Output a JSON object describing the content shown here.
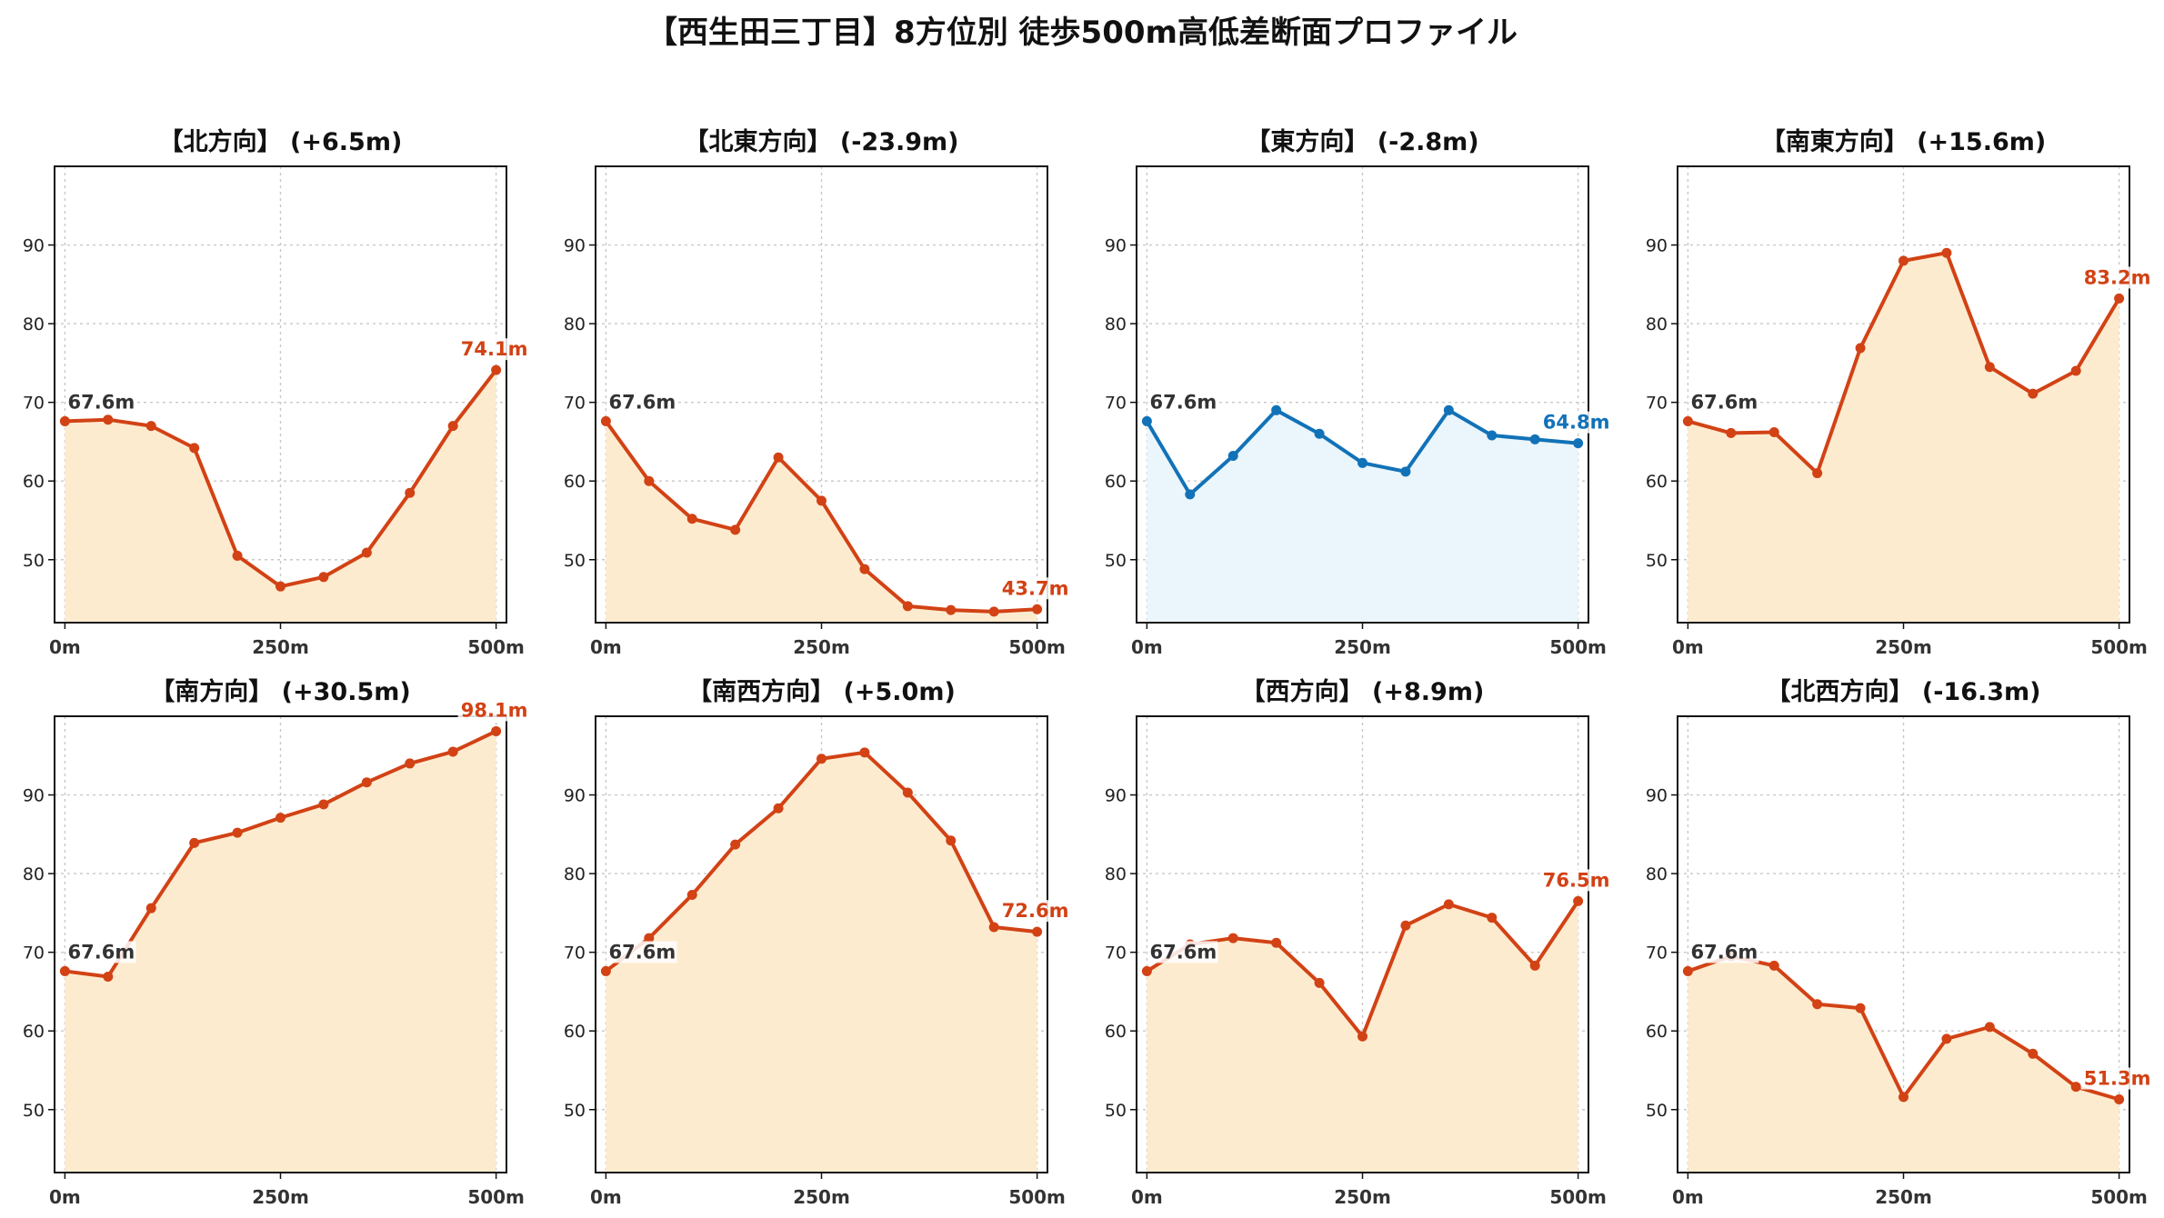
{
  "title": "【西生田三丁目】8方位別 徒歩500m高低差断面プロファイル",
  "colors": {
    "rise_line": "#d24215",
    "rise_fill": "#fdebcf",
    "fall_line": "#1272b8",
    "fall_fill": "#eaf6fb",
    "grid": "#c8c8c8",
    "start_label": "#333333"
  },
  "chart_data": [
    {
      "type": "area",
      "title": "【北方向】 (+6.5m)",
      "x": [
        0,
        50,
        100,
        150,
        200,
        250,
        300,
        350,
        400,
        450,
        500
      ],
      "y": [
        67.6,
        67.8,
        67.0,
        64.2,
        50.5,
        46.6,
        47.8,
        50.9,
        58.5,
        67.0,
        74.1
      ],
      "ylim": [
        42,
        100
      ],
      "yticks": [
        50,
        60,
        70,
        80,
        90
      ],
      "xticks": [
        "0m",
        "250m",
        "500m"
      ],
      "start_label": "67.6m",
      "end_label": "74.1m",
      "style": "rise",
      "grid": true
    },
    {
      "type": "area",
      "title": "【北東方向】 (-23.9m)",
      "x": [
        0,
        50,
        100,
        150,
        200,
        250,
        300,
        350,
        400,
        450,
        500
      ],
      "y": [
        67.6,
        60.0,
        55.2,
        53.8,
        63.0,
        57.5,
        48.8,
        44.1,
        43.6,
        43.4,
        43.7
      ],
      "ylim": [
        42,
        100
      ],
      "yticks": [
        50,
        60,
        70,
        80,
        90
      ],
      "xticks": [
        "0m",
        "250m",
        "500m"
      ],
      "start_label": "67.6m",
      "end_label": "43.7m",
      "style": "rise",
      "grid": true
    },
    {
      "type": "area",
      "title": "【東方向】 (-2.8m)",
      "x": [
        0,
        50,
        100,
        150,
        200,
        250,
        300,
        350,
        400,
        450,
        500
      ],
      "y": [
        67.6,
        58.3,
        63.2,
        69.0,
        66.0,
        62.3,
        61.2,
        69.0,
        65.8,
        65.3,
        64.8
      ],
      "ylim": [
        42,
        100
      ],
      "yticks": [
        50,
        60,
        70,
        80,
        90
      ],
      "xticks": [
        "0m",
        "250m",
        "500m"
      ],
      "start_label": "67.6m",
      "end_label": "64.8m",
      "style": "fall",
      "grid": true
    },
    {
      "type": "area",
      "title": "【南東方向】 (+15.6m)",
      "x": [
        0,
        50,
        100,
        150,
        200,
        250,
        300,
        350,
        400,
        450,
        500
      ],
      "y": [
        67.6,
        66.1,
        66.2,
        61.0,
        76.9,
        88.0,
        89.0,
        74.5,
        71.1,
        74.0,
        83.2
      ],
      "ylim": [
        42,
        100
      ],
      "yticks": [
        50,
        60,
        70,
        80,
        90
      ],
      "xticks": [
        "0m",
        "250m",
        "500m"
      ],
      "start_label": "67.6m",
      "end_label": "83.2m",
      "style": "rise",
      "grid": true
    },
    {
      "type": "area",
      "title": "【南方向】 (+30.5m)",
      "x": [
        0,
        50,
        100,
        150,
        200,
        250,
        300,
        350,
        400,
        450,
        500
      ],
      "y": [
        67.6,
        66.9,
        75.6,
        83.9,
        85.2,
        87.1,
        88.8,
        91.6,
        94.0,
        95.5,
        98.1
      ],
      "ylim": [
        42,
        100
      ],
      "yticks": [
        50,
        60,
        70,
        80,
        90
      ],
      "xticks": [
        "0m",
        "250m",
        "500m"
      ],
      "start_label": "67.6m",
      "end_label": "98.1m",
      "style": "rise",
      "grid": true
    },
    {
      "type": "area",
      "title": "【南西方向】 (+5.0m)",
      "x": [
        0,
        50,
        100,
        150,
        200,
        250,
        300,
        350,
        400,
        450,
        500
      ],
      "y": [
        67.6,
        71.8,
        77.3,
        83.7,
        88.3,
        94.6,
        95.4,
        90.3,
        84.2,
        73.2,
        72.6
      ],
      "ylim": [
        42,
        100
      ],
      "yticks": [
        50,
        60,
        70,
        80,
        90
      ],
      "xticks": [
        "0m",
        "250m",
        "500m"
      ],
      "start_label": "67.6m",
      "end_label": "72.6m",
      "style": "rise",
      "grid": true
    },
    {
      "type": "area",
      "title": "【西方向】 (+8.9m)",
      "x": [
        0,
        50,
        100,
        150,
        200,
        250,
        300,
        350,
        400,
        450,
        500
      ],
      "y": [
        67.6,
        71.0,
        71.8,
        71.2,
        66.1,
        59.3,
        73.4,
        76.1,
        74.4,
        68.3,
        76.5
      ],
      "ylim": [
        42,
        100
      ],
      "yticks": [
        50,
        60,
        70,
        80,
        90
      ],
      "xticks": [
        "0m",
        "250m",
        "500m"
      ],
      "start_label": "67.6m",
      "end_label": "76.5m",
      "style": "rise",
      "grid": true
    },
    {
      "type": "area",
      "title": "【北西方向】 (-16.3m)",
      "x": [
        0,
        50,
        100,
        150,
        200,
        250,
        300,
        350,
        400,
        450,
        500
      ],
      "y": [
        67.6,
        69.5,
        68.3,
        63.4,
        62.9,
        51.6,
        59.0,
        60.5,
        57.1,
        52.9,
        51.3
      ],
      "ylim": [
        42,
        100
      ],
      "yticks": [
        50,
        60,
        70,
        80,
        90
      ],
      "xticks": [
        "0m",
        "250m",
        "500m"
      ],
      "start_label": "67.6m",
      "end_label": "51.3m",
      "style": "rise",
      "grid": true
    }
  ]
}
